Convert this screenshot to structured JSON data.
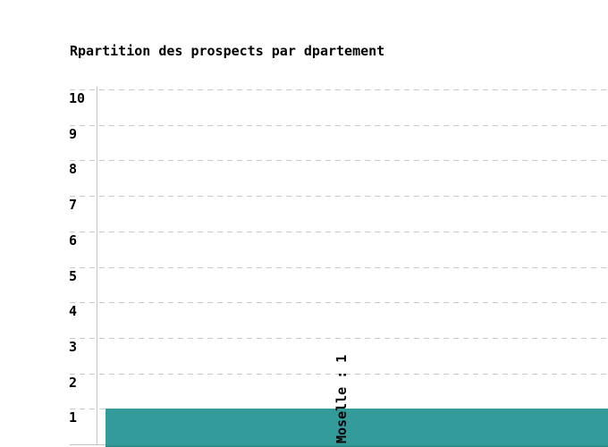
{
  "chart_data": {
    "type": "bar",
    "title": "Rpartition des prospects par dpartement",
    "categories": [
      "Moselle"
    ],
    "values": [
      1
    ],
    "bar_labels": [
      "Moselle : 1"
    ],
    "xlabel": "",
    "ylabel": "",
    "ylim": [
      0,
      10
    ],
    "yticks": [
      1,
      2,
      3,
      4,
      5,
      6,
      7,
      8,
      9,
      10
    ],
    "grid": "horizontal-dashed",
    "legend_position": "none",
    "colors": {
      "bar": "#349b9b",
      "gridline": "#c9c9c9",
      "axis": "#c3c3c3",
      "text": "#000000",
      "background": "#ffffff"
    }
  }
}
